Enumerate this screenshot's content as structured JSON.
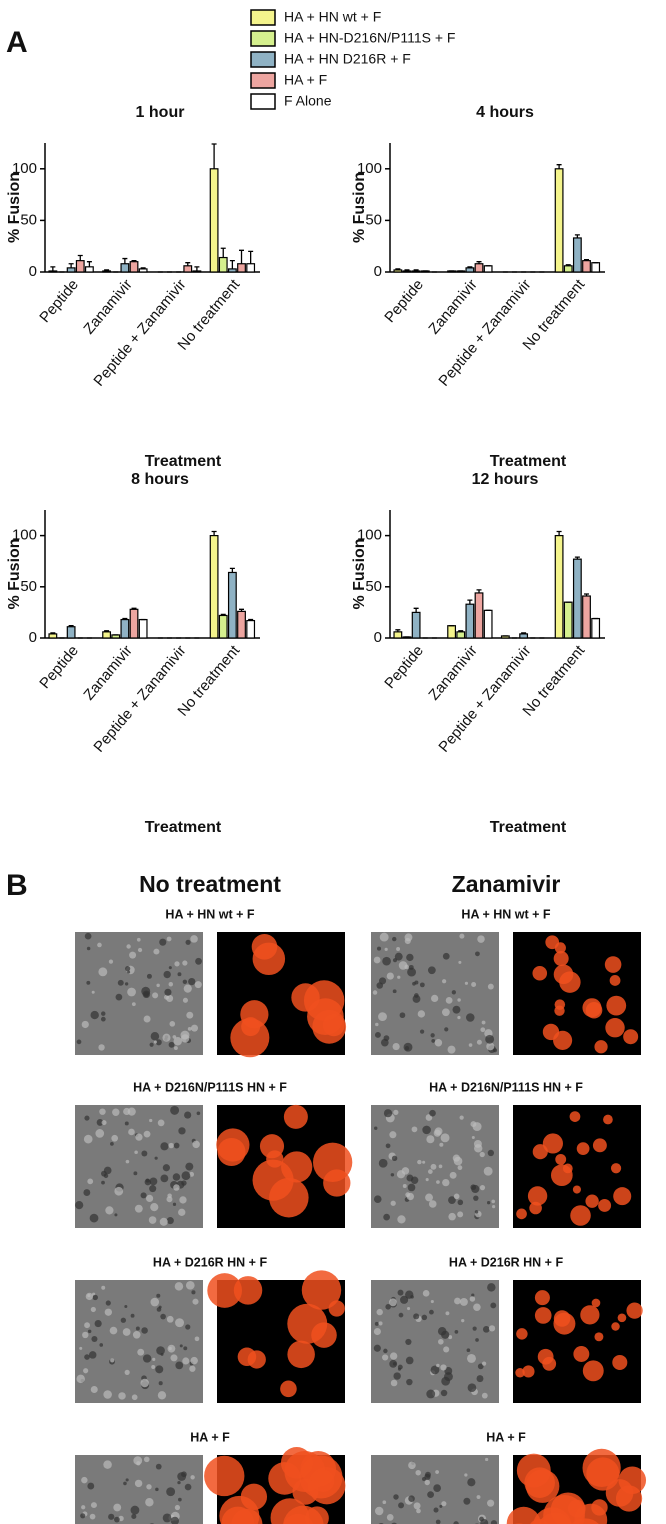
{
  "panel_labels": [
    "A",
    "B"
  ],
  "chart_data": [
    {
      "type": "bar",
      "title": "1 hour",
      "ylabel": "% Fusion",
      "xlabel": "Treatment",
      "categories": [
        "Peptide",
        "Zanamivir",
        "Peptide + Zanamivir",
        "No treatment"
      ],
      "ylim": [
        0,
        125
      ],
      "yticks": [
        0,
        50,
        100
      ],
      "series": [
        {
          "name": "HA + HN wt + F",
          "color": "#f4f48c",
          "values": [
            1,
            1,
            0,
            100
          ],
          "errors": [
            4,
            1,
            0,
            24
          ]
        },
        {
          "name": "HA + HN-D216N/P111S + F",
          "color": "#d5f08e",
          "values": [
            0,
            0,
            0,
            14
          ],
          "errors": [
            0,
            0,
            0,
            9
          ]
        },
        {
          "name": "HA + HN D216R + F",
          "color": "#8fb2c4",
          "values": [
            4,
            8,
            0,
            3
          ],
          "errors": [
            4,
            5,
            0,
            8
          ]
        },
        {
          "name": "HA + F",
          "color": "#eda5a0",
          "values": [
            11,
            10,
            6,
            8
          ],
          "errors": [
            5,
            1,
            3,
            13
          ]
        },
        {
          "name": "F Alone",
          "color": "#ffffff",
          "values": [
            5,
            3,
            1,
            8
          ],
          "errors": [
            5,
            1,
            4,
            12
          ]
        }
      ]
    },
    {
      "type": "bar",
      "title": "4 hours",
      "ylabel": "% Fusion",
      "xlabel": "Treatment",
      "categories": [
        "Peptide",
        "Zanamivir",
        "Peptide + Zanamivir",
        "No treatment"
      ],
      "ylim": [
        0,
        125
      ],
      "yticks": [
        0,
        50,
        100
      ],
      "series": [
        {
          "values": [
            2,
            1,
            0,
            100
          ],
          "errors": [
            1,
            0,
            0,
            4
          ]
        },
        {
          "values": [
            1,
            1,
            0,
            6
          ],
          "errors": [
            1,
            0,
            0,
            1
          ]
        },
        {
          "values": [
            1,
            4,
            0,
            33
          ],
          "errors": [
            1,
            1,
            0,
            3
          ]
        },
        {
          "values": [
            1,
            8,
            0,
            11
          ],
          "errors": [
            0,
            2,
            0,
            1
          ]
        },
        {
          "values": [
            0,
            6,
            0,
            9
          ],
          "errors": [
            0,
            0,
            0,
            0
          ]
        }
      ]
    },
    {
      "type": "bar",
      "title": "8 hours",
      "ylabel": "% Fusion",
      "xlabel": "Treatment",
      "categories": [
        "Peptide",
        "Zanamivir",
        "Peptide + Zanamivir",
        "No treatment"
      ],
      "ylim": [
        0,
        125
      ],
      "yticks": [
        0,
        50,
        100
      ],
      "series": [
        {
          "values": [
            4,
            6,
            0,
            100
          ],
          "errors": [
            1,
            1,
            0,
            4
          ]
        },
        {
          "values": [
            0,
            3,
            0,
            22
          ],
          "errors": [
            0,
            0,
            0,
            1
          ]
        },
        {
          "values": [
            11,
            18,
            0,
            64
          ],
          "errors": [
            1,
            1,
            0,
            4
          ]
        },
        {
          "values": [
            0,
            28,
            0,
            26
          ],
          "errors": [
            0,
            1,
            0,
            2
          ]
        },
        {
          "values": [
            0,
            18,
            0,
            17
          ],
          "errors": [
            0,
            0,
            0,
            1
          ]
        }
      ]
    },
    {
      "type": "bar",
      "title": "12 hours",
      "ylabel": "% Fusion",
      "xlabel": "Treatment",
      "categories": [
        "Peptide",
        "Zanamivir",
        "Peptide + Zanamivir",
        "No treatment"
      ],
      "ylim": [
        0,
        125
      ],
      "yticks": [
        0,
        50,
        100
      ],
      "series": [
        {
          "values": [
            6,
            12,
            2,
            100
          ],
          "errors": [
            2,
            0,
            0,
            4
          ]
        },
        {
          "values": [
            1,
            6,
            0,
            35
          ],
          "errors": [
            0,
            1,
            0,
            0
          ]
        },
        {
          "values": [
            25,
            33,
            4,
            77
          ],
          "errors": [
            4,
            4,
            1,
            2
          ]
        },
        {
          "values": [
            0,
            44,
            0,
            41
          ],
          "errors": [
            0,
            3,
            0,
            2
          ]
        },
        {
          "values": [
            0,
            27,
            0,
            19
          ],
          "errors": [
            0,
            0,
            0,
            0
          ]
        }
      ]
    }
  ],
  "panel_b": {
    "columns": [
      {
        "title": "No treatment",
        "rows": [
          "HA + HN wt + F",
          "HA + D216N/P111S  HN + F",
          "HA + D216R HN + F",
          "HA + F"
        ]
      },
      {
        "title": "Zanamivir",
        "rows": [
          "HA + HN wt + F",
          "HA + D216N/P111S  HN + F",
          "HA + D216R HN + F",
          "HA + F"
        ]
      }
    ]
  }
}
